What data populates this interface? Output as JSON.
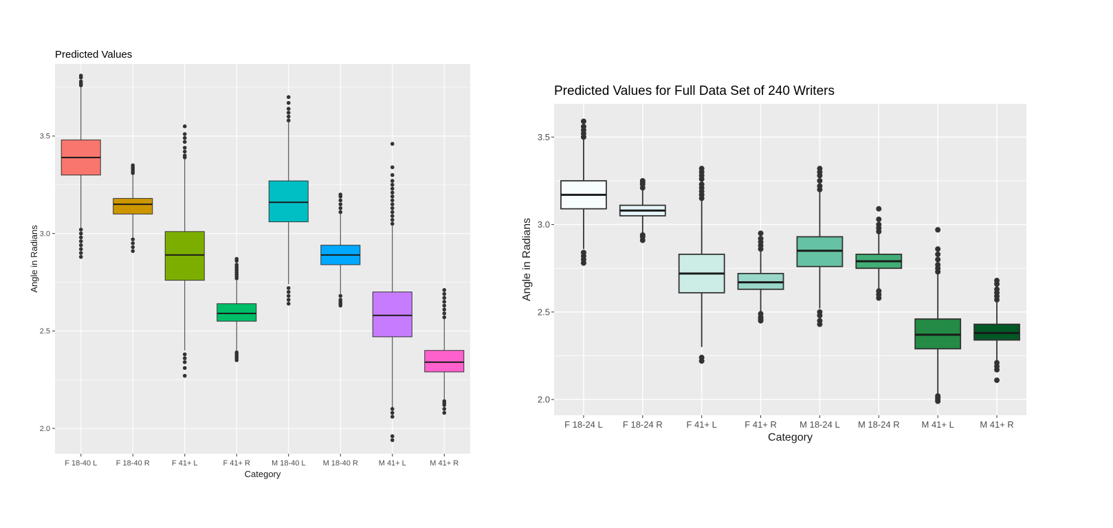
{
  "chart_data": [
    {
      "type": "box",
      "title": "Predicted Values",
      "xlabel": "Category",
      "ylabel": "Angle in Radians",
      "ylim": [
        1.87,
        3.87
      ],
      "yticks": [
        2.0,
        2.5,
        3.0,
        3.5
      ],
      "grid": true,
      "legend": "none",
      "categories": [
        "F 18-40 L",
        "F 18-40 R",
        "F 41+ L",
        "F 41+ R",
        "M 18-40 L",
        "M 18-40 R",
        "M 41+ L",
        "M 41+ R"
      ],
      "colors": [
        "#F8766D",
        "#CD9600",
        "#7CAE00",
        "#00BE67",
        "#00BFC4",
        "#00A9FF",
        "#C77CFF",
        "#FF61CC"
      ],
      "boxes": [
        {
          "min": 3.03,
          "q1": 3.3,
          "median": 3.39,
          "q3": 3.48,
          "max": 3.75,
          "outliers": [
            2.88,
            2.9,
            2.92,
            2.94,
            2.96,
            2.98,
            3.0,
            3.02,
            3.76,
            3.77,
            3.78,
            3.8,
            3.81
          ]
        },
        {
          "min": 2.98,
          "q1": 3.1,
          "median": 3.15,
          "q3": 3.18,
          "max": 3.3,
          "outliers": [
            2.91,
            2.93,
            2.95,
            2.97,
            3.31,
            3.32,
            3.33,
            3.34,
            3.35
          ]
        },
        {
          "min": 2.4,
          "q1": 2.76,
          "median": 2.89,
          "q3": 3.01,
          "max": 3.38,
          "outliers": [
            2.27,
            2.31,
            2.34,
            2.36,
            2.38,
            3.39,
            3.4,
            3.42,
            3.44,
            3.47,
            3.49,
            3.51,
            3.55
          ]
        },
        {
          "min": 2.4,
          "q1": 2.55,
          "median": 2.59,
          "q3": 2.64,
          "max": 2.76,
          "outliers": [
            2.35,
            2.36,
            2.37,
            2.38,
            2.39,
            2.77,
            2.78,
            2.79,
            2.8,
            2.81,
            2.82,
            2.83,
            2.84,
            2.86,
            2.87
          ]
        },
        {
          "min": 2.74,
          "q1": 3.06,
          "median": 3.16,
          "q3": 3.27,
          "max": 3.57,
          "outliers": [
            2.64,
            2.66,
            2.68,
            2.7,
            2.72,
            3.58,
            3.6,
            3.62,
            3.64,
            3.67,
            3.7
          ]
        },
        {
          "min": 2.69,
          "q1": 2.84,
          "median": 2.89,
          "q3": 2.94,
          "max": 3.1,
          "outliers": [
            2.63,
            2.64,
            2.65,
            2.66,
            2.68,
            3.11,
            3.13,
            3.15,
            3.17,
            3.19,
            3.2
          ]
        },
        {
          "min": 2.11,
          "q1": 2.47,
          "median": 2.58,
          "q3": 2.7,
          "max": 3.04,
          "outliers": [
            1.94,
            1.96,
            2.06,
            2.08,
            2.1,
            3.05,
            3.07,
            3.09,
            3.11,
            3.13,
            3.15,
            3.17,
            3.19,
            3.21,
            3.23,
            3.25,
            3.27,
            3.3,
            3.34,
            3.46
          ]
        },
        {
          "min": 2.15,
          "q1": 2.29,
          "median": 2.34,
          "q3": 2.4,
          "max": 2.56,
          "outliers": [
            2.08,
            2.1,
            2.12,
            2.13,
            2.14,
            2.57,
            2.59,
            2.61,
            2.63,
            2.65,
            2.67,
            2.69,
            2.71
          ]
        }
      ]
    },
    {
      "type": "box",
      "title": "Predicted Values for Full Data Set of 240 Writers",
      "xlabel": "Category",
      "ylabel": "Angle in Radians",
      "ylim": [
        1.91,
        3.69
      ],
      "yticks": [
        2.0,
        2.5,
        3.0,
        3.5
      ],
      "grid": true,
      "legend": "none",
      "categories": [
        "F 18-24 L",
        "F 18-24 R",
        "F 41+ L",
        "F 41+ R",
        "M 18-24 L",
        "M 18-24 R",
        "M 41+ L",
        "M 41+ R"
      ],
      "colors": [
        "#F7FCFD",
        "#E5F5F9",
        "#CCECE6",
        "#99D8C9",
        "#66C2A4",
        "#41AE76",
        "#238B45",
        "#005824"
      ],
      "boxes": [
        {
          "min": 2.86,
          "q1": 3.09,
          "median": 3.17,
          "q3": 3.25,
          "max": 3.49,
          "outliers": [
            2.78,
            2.8,
            2.82,
            2.84,
            3.5,
            3.52,
            3.54,
            3.56,
            3.59
          ]
        },
        {
          "min": 2.95,
          "q1": 3.05,
          "median": 3.08,
          "q3": 3.11,
          "max": 3.2,
          "outliers": [
            2.91,
            2.93,
            2.94,
            3.21,
            3.23,
            3.24,
            3.25
          ]
        },
        {
          "min": 2.3,
          "q1": 2.61,
          "median": 2.72,
          "q3": 2.83,
          "max": 3.14,
          "outliers": [
            2.22,
            2.24,
            3.15,
            3.17,
            3.19,
            3.21,
            3.23,
            3.26,
            3.28,
            3.3,
            3.32
          ]
        },
        {
          "min": 2.5,
          "q1": 2.63,
          "median": 2.67,
          "q3": 2.72,
          "max": 2.85,
          "outliers": [
            2.45,
            2.46,
            2.47,
            2.49,
            2.86,
            2.88,
            2.9,
            2.92,
            2.95
          ]
        },
        {
          "min": 2.52,
          "q1": 2.76,
          "median": 2.85,
          "q3": 2.93,
          "max": 3.19,
          "outliers": [
            2.43,
            2.45,
            2.48,
            2.5,
            3.2,
            3.22,
            3.25,
            3.28,
            3.3,
            3.32
          ]
        },
        {
          "min": 2.63,
          "q1": 2.75,
          "median": 2.79,
          "q3": 2.83,
          "max": 2.95,
          "outliers": [
            2.58,
            2.6,
            2.62,
            2.96,
            2.98,
            3.0,
            3.03,
            3.09
          ]
        },
        {
          "min": 2.03,
          "q1": 2.29,
          "median": 2.37,
          "q3": 2.46,
          "max": 2.72,
          "outliers": [
            1.99,
            2.0,
            2.01,
            2.02,
            2.73,
            2.75,
            2.77,
            2.8,
            2.83,
            2.86,
            2.97
          ]
        },
        {
          "min": 2.22,
          "q1": 2.34,
          "median": 2.38,
          "q3": 2.43,
          "max": 2.56,
          "outliers": [
            2.11,
            2.17,
            2.19,
            2.21,
            2.57,
            2.59,
            2.61,
            2.63,
            2.66,
            2.68
          ]
        }
      ]
    }
  ]
}
